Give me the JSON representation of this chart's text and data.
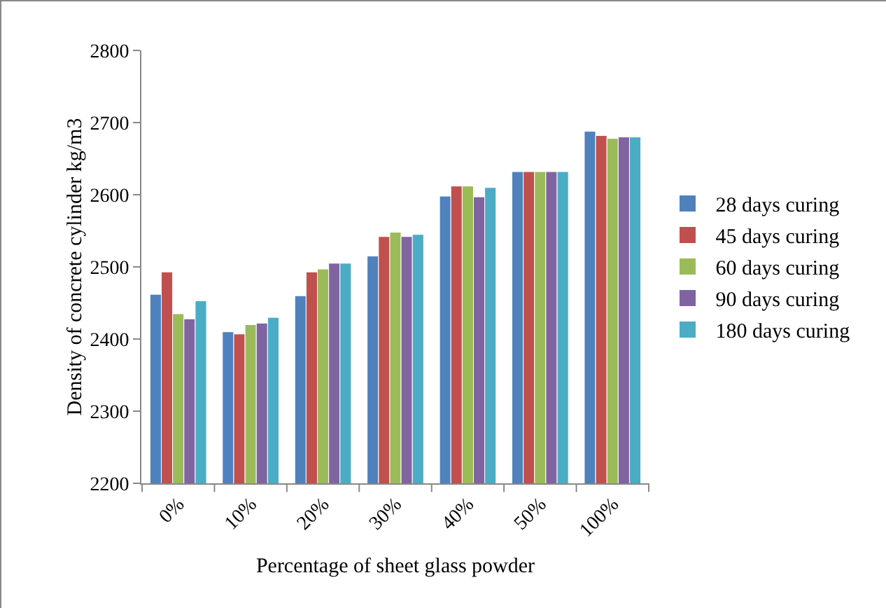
{
  "chart_data": {
    "type": "bar",
    "xlabel": "Percentage of sheet glass powder",
    "ylabel": "Density of concrete cylinder kg/m3",
    "categories": [
      "0%",
      "10%",
      "20%",
      "30%",
      "40%",
      "50%",
      "100%"
    ],
    "series": [
      {
        "name": "28 days curing",
        "color": "#4f81bd",
        "values": [
          2462,
          2410,
          2460,
          2515,
          2598,
          2632,
          2688
        ]
      },
      {
        "name": "45 days curing",
        "color": "#c0504d",
        "values": [
          2493,
          2407,
          2493,
          2542,
          2612,
          2632,
          2682
        ]
      },
      {
        "name": "60 days curing",
        "color": "#9bbb59",
        "values": [
          2435,
          2420,
          2497,
          2548,
          2612,
          2632,
          2678
        ]
      },
      {
        "name": "90 days curing",
        "color": "#8064a2",
        "values": [
          2428,
          2422,
          2505,
          2542,
          2597,
          2632,
          2680
        ]
      },
      {
        "name": "180 days curing",
        "color": "#4bacc6",
        "values": [
          2453,
          2430,
          2505,
          2545,
          2610,
          2632,
          2680
        ]
      }
    ],
    "ylim": [
      2200,
      2800
    ],
    "yticks": [
      2200,
      2300,
      2400,
      2500,
      2600,
      2700,
      2800
    ],
    "grid": false,
    "legend": "right"
  }
}
